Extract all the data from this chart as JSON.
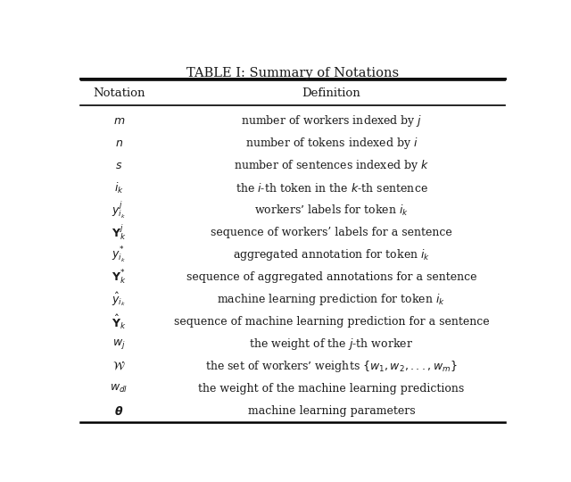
{
  "title": "TABLE I: Summary of Notations",
  "col_headers": [
    "Notation",
    "Definition"
  ],
  "rows": [
    [
      "$m$",
      "number of workers indexed by $j$"
    ],
    [
      "$n$",
      "number of tokens indexed by $i$"
    ],
    [
      "$s$",
      "number of sentences indexed by $k$"
    ],
    [
      "$i_k$",
      "the $i$-th token in the $k$-th sentence"
    ],
    [
      "$y^{j}_{i_k}$",
      "workers’ labels for token $i_k$"
    ],
    [
      "$\\mathbf{Y}^{j}_{k}$",
      "sequence of workers’ labels for a sentence"
    ],
    [
      "$y^{*}_{i_k}$",
      "aggregated annotation for token $i_k$"
    ],
    [
      "$\\mathbf{Y}^{*}_{k}$",
      "sequence of aggregated annotations for a sentence"
    ],
    [
      "$\\hat{y}_{i_k}$",
      "machine learning prediction for token $i_k$"
    ],
    [
      "$\\hat{\\mathbf{Y}}_k$",
      "sequence of machine learning prediction for a sentence"
    ],
    [
      "$w_j$",
      "the weight of the $j$-th worker"
    ],
    [
      "$\\mathcal{W}$",
      "the set of workers’ weights $\\{w_1, w_2, ..., w_m\\}$"
    ],
    [
      "$w_{dl}$",
      "the weight of the machine learning predictions"
    ],
    [
      "$\\boldsymbol{\\theta}$",
      "machine learning parameters"
    ]
  ],
  "bg_color": "#ffffff",
  "text_color": "#1a1a1a",
  "title_fontsize": 10.5,
  "header_fontsize": 9.5,
  "body_fontsize": 9.0,
  "fig_width": 6.4,
  "fig_height": 5.4
}
